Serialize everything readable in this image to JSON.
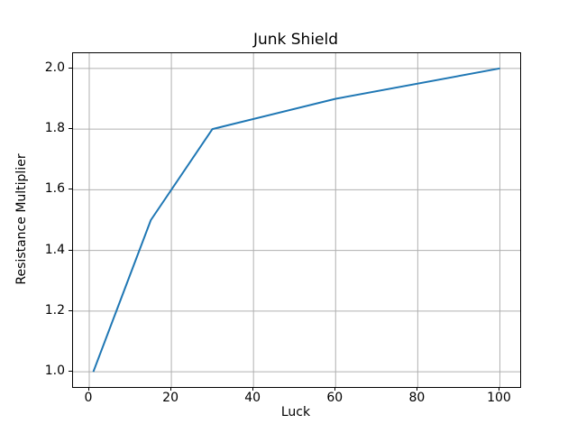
{
  "chart_data": {
    "type": "line",
    "title": "Junk Shield",
    "xlabel": "Luck",
    "ylabel": "Resistance Multiplier",
    "x": [
      1,
      15,
      30,
      60,
      100
    ],
    "y": [
      1.0,
      1.5,
      1.8,
      1.9,
      2.0
    ],
    "xlim": [
      -3.95,
      104.95
    ],
    "ylim": [
      0.95,
      2.05
    ],
    "xticks": [
      0,
      20,
      40,
      60,
      80,
      100
    ],
    "xtick_labels": [
      "0",
      "20",
      "40",
      "60",
      "80",
      "100"
    ],
    "yticks": [
      1.0,
      1.2,
      1.4,
      1.6,
      1.8,
      2.0
    ],
    "ytick_labels": [
      "1.0",
      "1.2",
      "1.4",
      "1.6",
      "1.8",
      "2.0"
    ],
    "grid": true,
    "legend": "none",
    "line_color": "#1f77b4",
    "grid_color": "#b0b0b0",
    "spine_color": "#000000",
    "background_color": "#ffffff"
  }
}
